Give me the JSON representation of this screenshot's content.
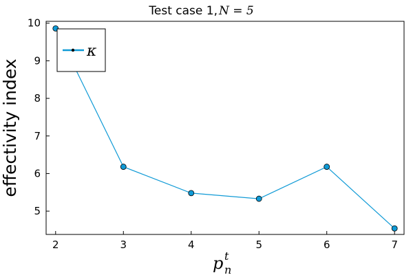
{
  "chart_data": {
    "type": "line",
    "title": "Test case 1, ",
    "title_math": "N = 5",
    "xlabel": "p",
    "xlabel_sup": "t",
    "xlabel_sub": "n",
    "ylabel": "effectivity index",
    "x": [
      2,
      3,
      4,
      5,
      6,
      7
    ],
    "series": [
      {
        "name": "κ",
        "values": [
          9.86,
          6.18,
          5.48,
          5.33,
          6.18,
          4.54
        ],
        "color": "#0f9ad6"
      }
    ],
    "xlim": [
      1.86,
      7.14
    ],
    "ylim": [
      4.38,
      10.05
    ],
    "xticks": [
      2,
      3,
      4,
      5,
      6,
      7
    ],
    "yticks": [
      5,
      6,
      7,
      8,
      9,
      10
    ],
    "grid": false,
    "legend_position": "top-left"
  }
}
